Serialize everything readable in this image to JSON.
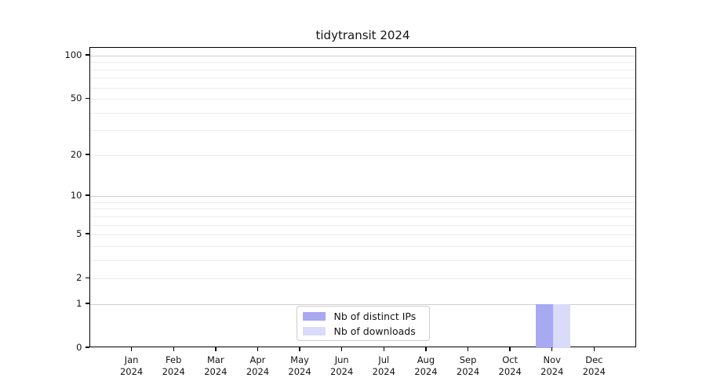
{
  "chart_data": {
    "type": "bar",
    "title": "tidytransit 2024",
    "xlabel": "",
    "ylabel": "",
    "yscale": "log1p",
    "yticks": [
      0,
      1,
      2,
      5,
      10,
      20,
      50,
      100
    ],
    "ylim": [
      0,
      113
    ],
    "grid": {
      "on": true,
      "major": [
        1,
        10,
        100
      ],
      "minor": [
        2,
        3,
        4,
        5,
        6,
        7,
        8,
        9,
        20,
        30,
        40,
        50,
        60,
        70,
        80,
        90
      ]
    },
    "categories": [
      "Jan 2024",
      "Feb 2024",
      "Mar 2024",
      "Apr 2024",
      "May 2024",
      "Jun 2024",
      "Jul 2024",
      "Aug 2024",
      "Sep 2024",
      "Oct 2024",
      "Nov 2024",
      "Dec 2024"
    ],
    "series": [
      {
        "name": "Nb of distinct IPs",
        "color": "#a8a9f0",
        "values": [
          0,
          0,
          0,
          0,
          0,
          0,
          0,
          0,
          0,
          0,
          1,
          0
        ]
      },
      {
        "name": "Nb of downloads",
        "color": "#dadbf8",
        "values": [
          0,
          0,
          0,
          0,
          0,
          0,
          0,
          0,
          0,
          0,
          1,
          0
        ]
      }
    ],
    "legend": {
      "position": "lower center",
      "entries": [
        "Nb of distinct IPs",
        "Nb of downloads"
      ]
    }
  }
}
